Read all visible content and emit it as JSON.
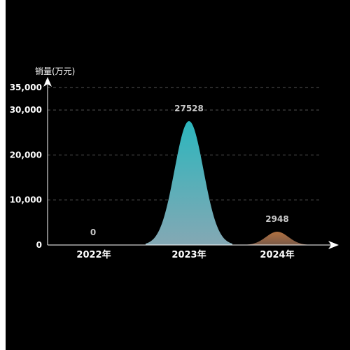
{
  "chart_data": {
    "type": "area",
    "title": "",
    "ylabel": "销量(万元)",
    "xlabel": "",
    "categories": [
      "2022年",
      "2023年",
      "2024年"
    ],
    "values": [
      0,
      27528,
      2948
    ],
    "data_labels": [
      "0",
      "27528",
      "2948"
    ],
    "ylim": [
      0,
      35000
    ],
    "y_ticks": [
      0,
      10000,
      20000,
      30000,
      35000
    ],
    "y_tick_labels": [
      "0",
      "10,000",
      "20,000",
      "30,000",
      "35,000"
    ],
    "grid": true,
    "colors": {
      "background": "#000000",
      "axis": "#ffffff",
      "grid": "#555555",
      "label_text": "#ffffff",
      "data_label": "#c8c8c8",
      "peak_2023_top": "#2cb6bd",
      "peak_2023_bottom": "#84a8b4",
      "peak_2024_top": "#b07040",
      "peak_2024_bottom": "#7a5a48"
    }
  }
}
